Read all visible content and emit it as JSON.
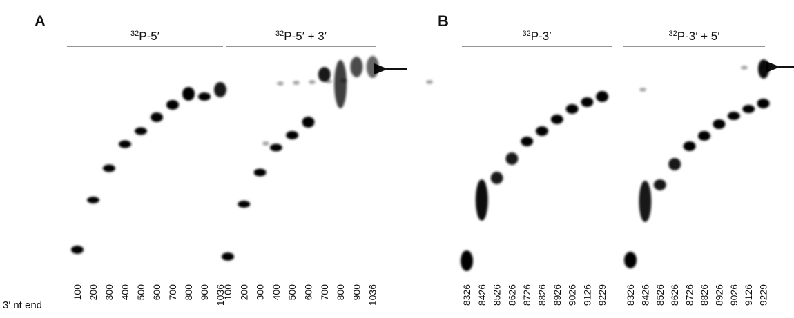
{
  "panels": [
    {
      "letter": "A",
      "groups": [
        {
          "isotope": "32",
          "label": "P-5′"
        },
        {
          "isotope": "32",
          "label": "P-5′ + 3′"
        }
      ],
      "lanes": [
        [
          "100",
          "200",
          "300",
          "400",
          "500",
          "600",
          "700",
          "800",
          "900",
          "1036"
        ],
        [
          "100",
          "200",
          "300",
          "400",
          "500",
          "600",
          "700",
          "800",
          "900",
          "1036"
        ]
      ]
    },
    {
      "letter": "B",
      "groups": [
        {
          "isotope": "32",
          "label": "P-3′"
        },
        {
          "isotope": "32",
          "label": "P-3′ + 5′"
        }
      ],
      "lanes": [
        [
          "8326",
          "8426",
          "8526",
          "8626",
          "8726",
          "8826",
          "8926",
          "9026",
          "9126",
          "9229"
        ],
        [
          "8326",
          "8426",
          "8526",
          "8626",
          "8726",
          "8826",
          "8926",
          "9026",
          "9126",
          "9229"
        ]
      ]
    }
  ],
  "axis_label": "3′ nt end"
}
